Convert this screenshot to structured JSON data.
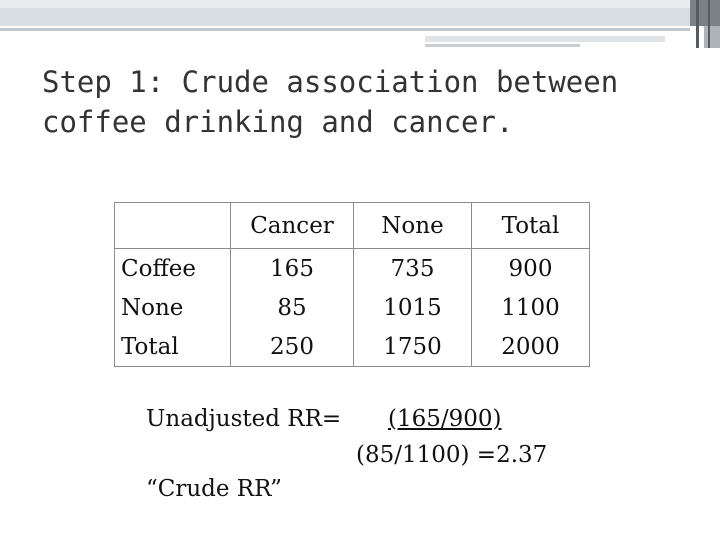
{
  "slide": {
    "title_line1": "Step 1: Crude association between",
    "title_line2": "coffee drinking and cancer."
  },
  "table": {
    "header": [
      "",
      "Cancer",
      "None",
      "Total"
    ],
    "rows": [
      {
        "label": "Coffee",
        "cells": [
          "165",
          "735",
          "900"
        ]
      },
      {
        "label": "None",
        "cells": [
          "85",
          "1015",
          "1100"
        ]
      },
      {
        "label": "Total",
        "cells": [
          "250",
          "1750",
          "2000"
        ]
      }
    ]
  },
  "formula": {
    "label": "Unadjusted RR=",
    "numerator": "(165/900)",
    "denominator": "(85/1100) =2.37",
    "crude_note": "“Crude RR”"
  }
}
